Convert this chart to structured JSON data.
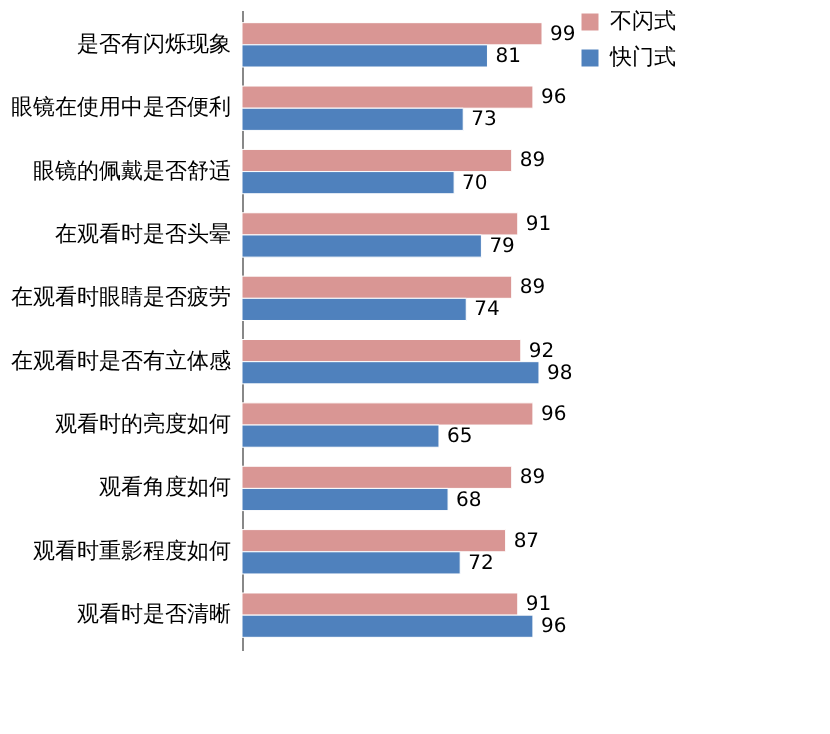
{
  "chart_data": {
    "type": "bar",
    "orientation": "horizontal",
    "categories": [
      "是否有闪烁现象",
      "眼镜在使用中是否便利",
      "眼镜的佩戴是否舒适",
      "在观看时是否头晕",
      "在观看时眼睛是否疲劳",
      "在观看时是否有立体感",
      "观看时的亮度如何",
      "观看角度如何",
      "观看时重影程度如何",
      "观看时是否清晰"
    ],
    "series": [
      {
        "name": "不闪式",
        "color": "#d99694",
        "values": [
          99,
          96,
          89,
          91,
          89,
          92,
          96,
          89,
          87,
          91
        ]
      },
      {
        "name": "快门式",
        "color": "#4f81bd",
        "values": [
          81,
          73,
          70,
          79,
          74,
          98,
          65,
          68,
          72,
          96
        ]
      }
    ],
    "data_labels": true,
    "legend": "top right"
  }
}
